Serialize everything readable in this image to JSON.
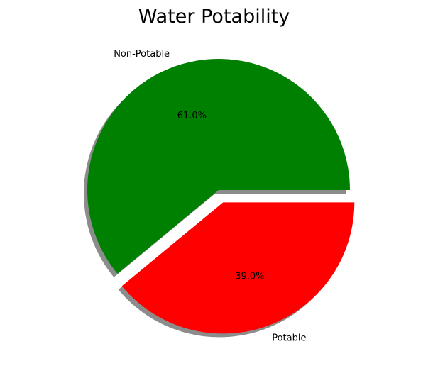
{
  "chart_data": {
    "type": "pie",
    "title": "Water Potability",
    "categories": [
      "Non-Potable",
      "Potable"
    ],
    "values": [
      61.0,
      39.0
    ],
    "value_labels": [
      "61.0%",
      "39.0%"
    ],
    "colors": [
      "#008000",
      "#ff0000"
    ],
    "explode": [
      0,
      0.1
    ],
    "shadow": true,
    "autopct": true
  }
}
